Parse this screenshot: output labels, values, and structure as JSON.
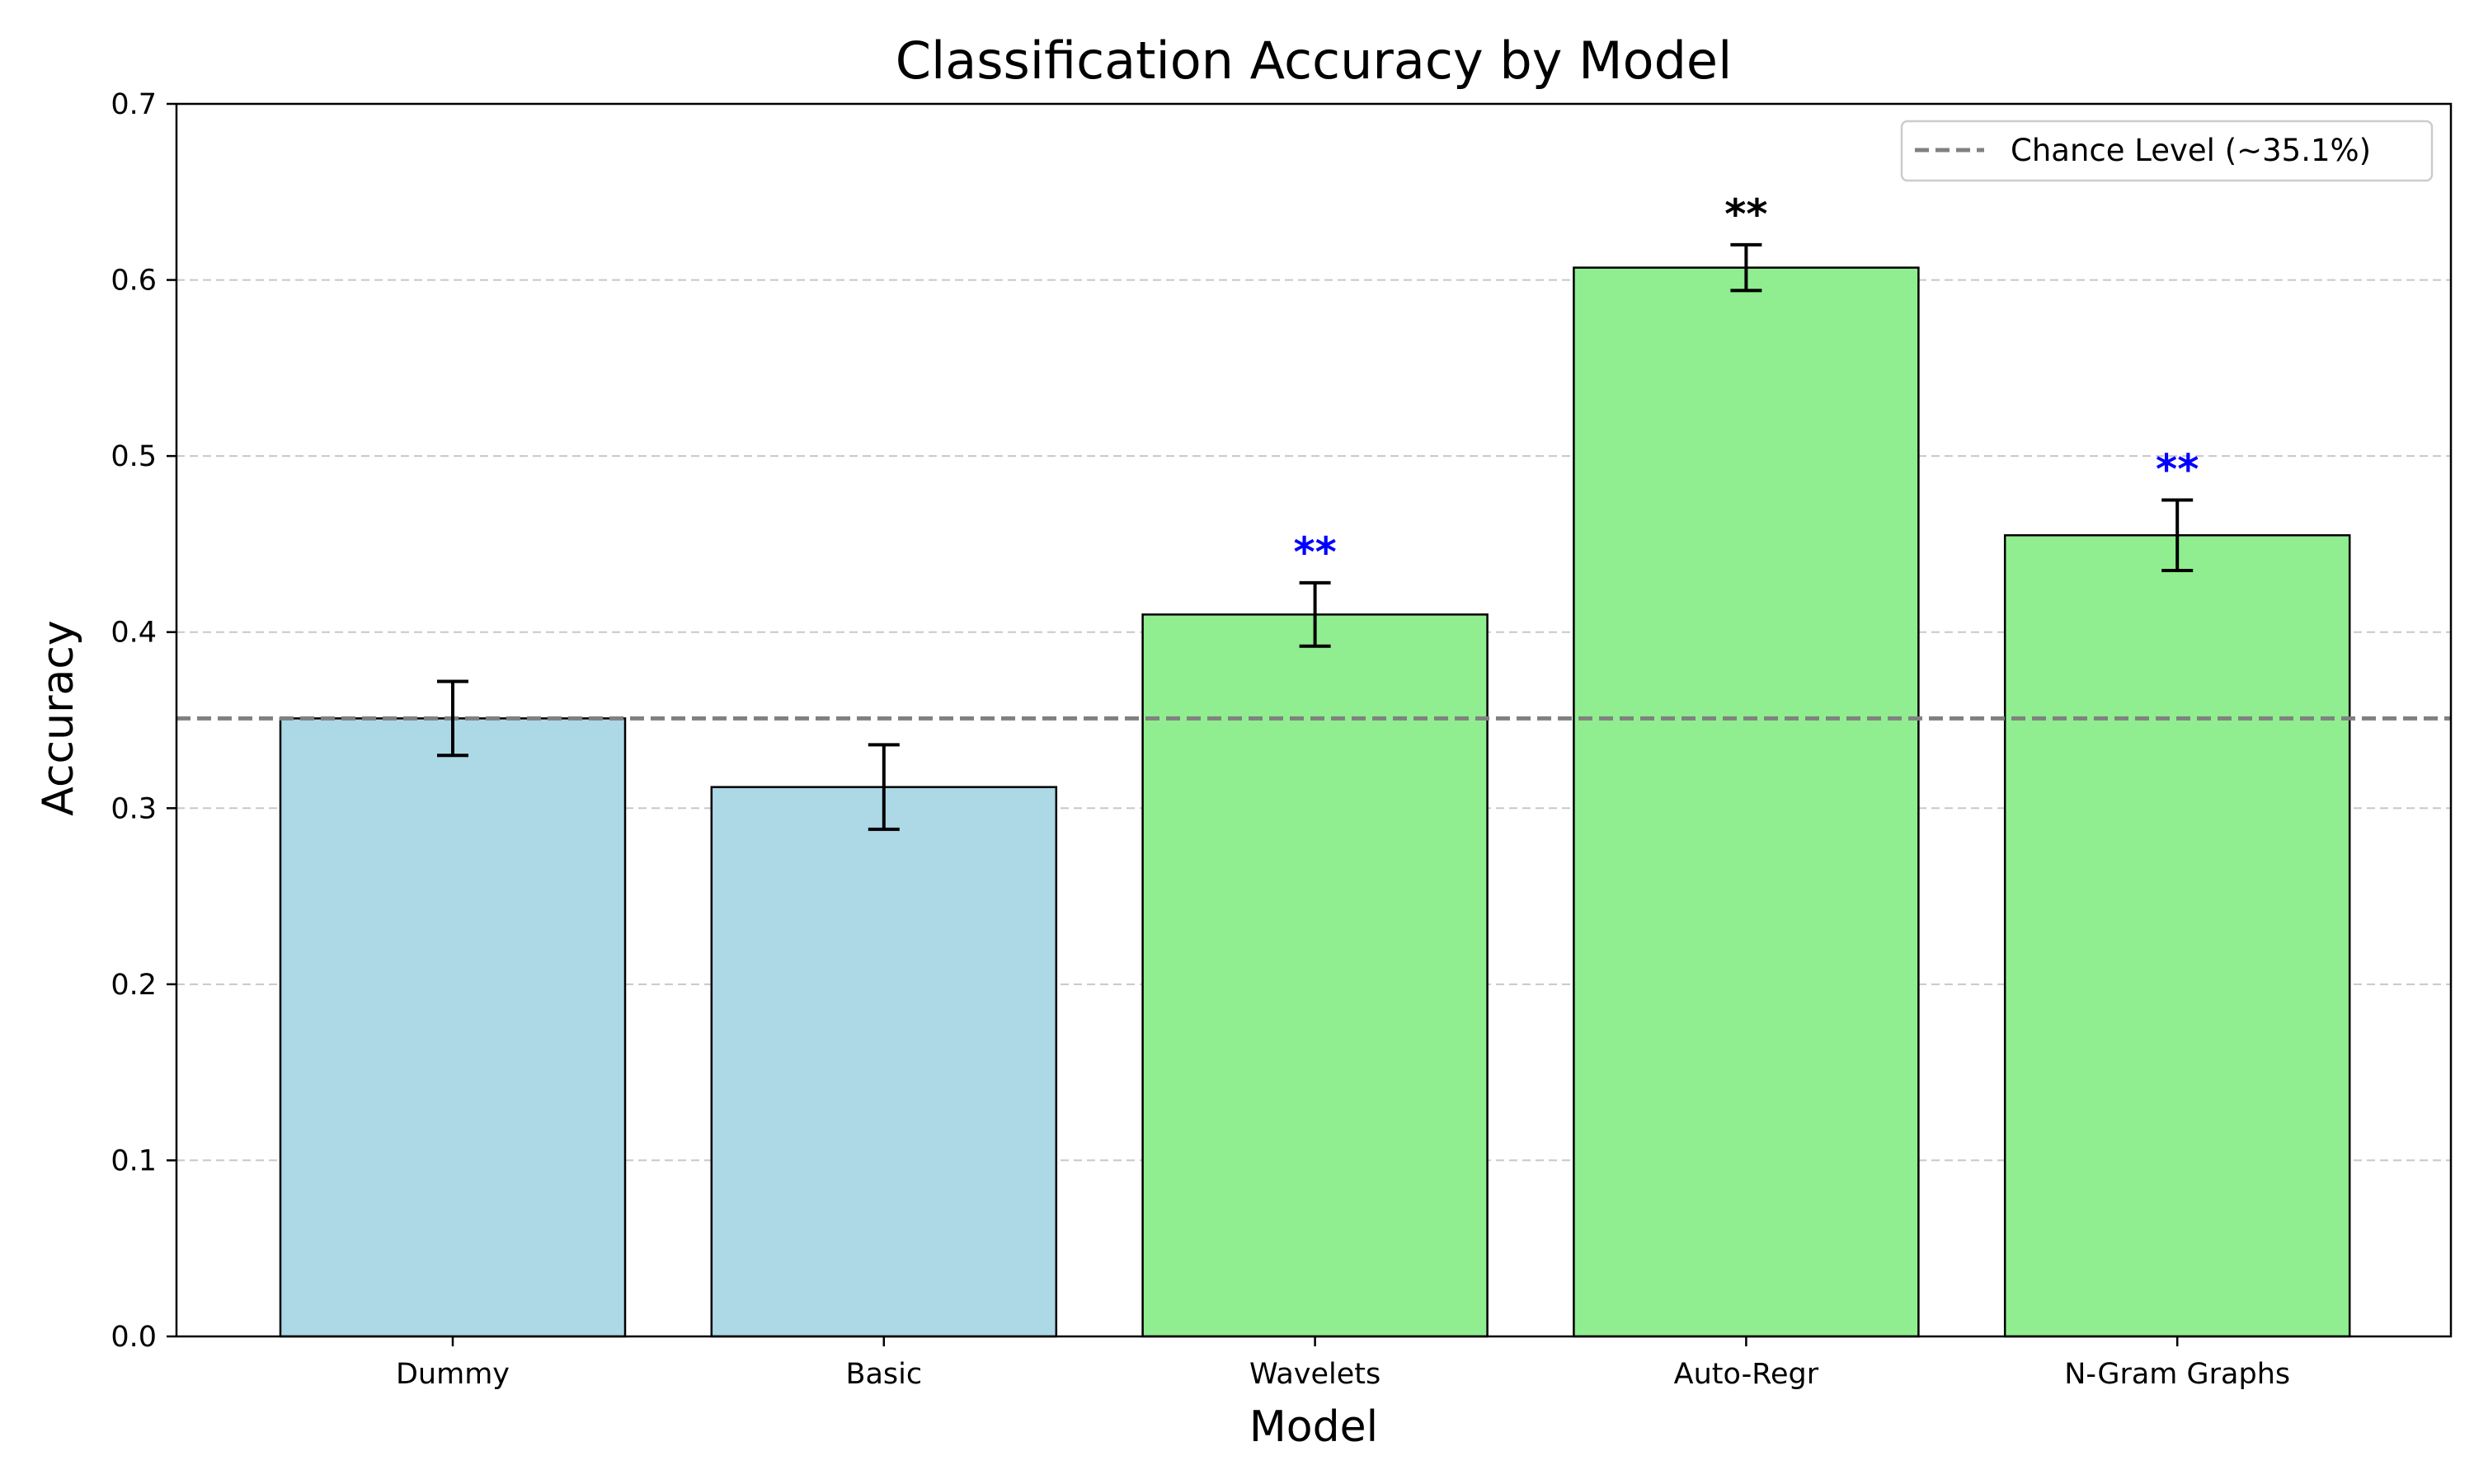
{
  "chart_data": {
    "type": "bar",
    "title": "Classification Accuracy by Model",
    "xlabel": "Model",
    "ylabel": "Accuracy",
    "ylim": [
      0,
      0.7
    ],
    "yticks": [
      "0.0",
      "0.1",
      "0.2",
      "0.3",
      "0.4",
      "0.5",
      "0.6",
      "0.7"
    ],
    "categories": [
      "Dummy",
      "Basic",
      "Wavelets",
      "Auto-Regr",
      "N-Gram Graphs"
    ],
    "values": [
      0.351,
      0.312,
      0.41,
      0.607,
      0.455
    ],
    "errors": [
      0.021,
      0.024,
      0.018,
      0.013,
      0.02
    ],
    "bar_colors": [
      "#add8e6",
      "#add8e6",
      "#90ee90",
      "#90ee90",
      "#90ee90"
    ],
    "significance": [
      {
        "label": "",
        "color": ""
      },
      {
        "label": "",
        "color": ""
      },
      {
        "label": "**",
        "color": "#0000ff"
      },
      {
        "label": "**",
        "color": "#000000"
      },
      {
        "label": "**",
        "color": "#0000ff"
      }
    ],
    "chance_level": 0.351,
    "legend": {
      "entries": [
        "Chance Level (~35.1%)"
      ],
      "placement": "top-right"
    },
    "grid": {
      "y": true,
      "x": false
    },
    "colors": {
      "chance_line": "#808080",
      "grid": "#c8c8c8",
      "edge": "#000000"
    }
  }
}
